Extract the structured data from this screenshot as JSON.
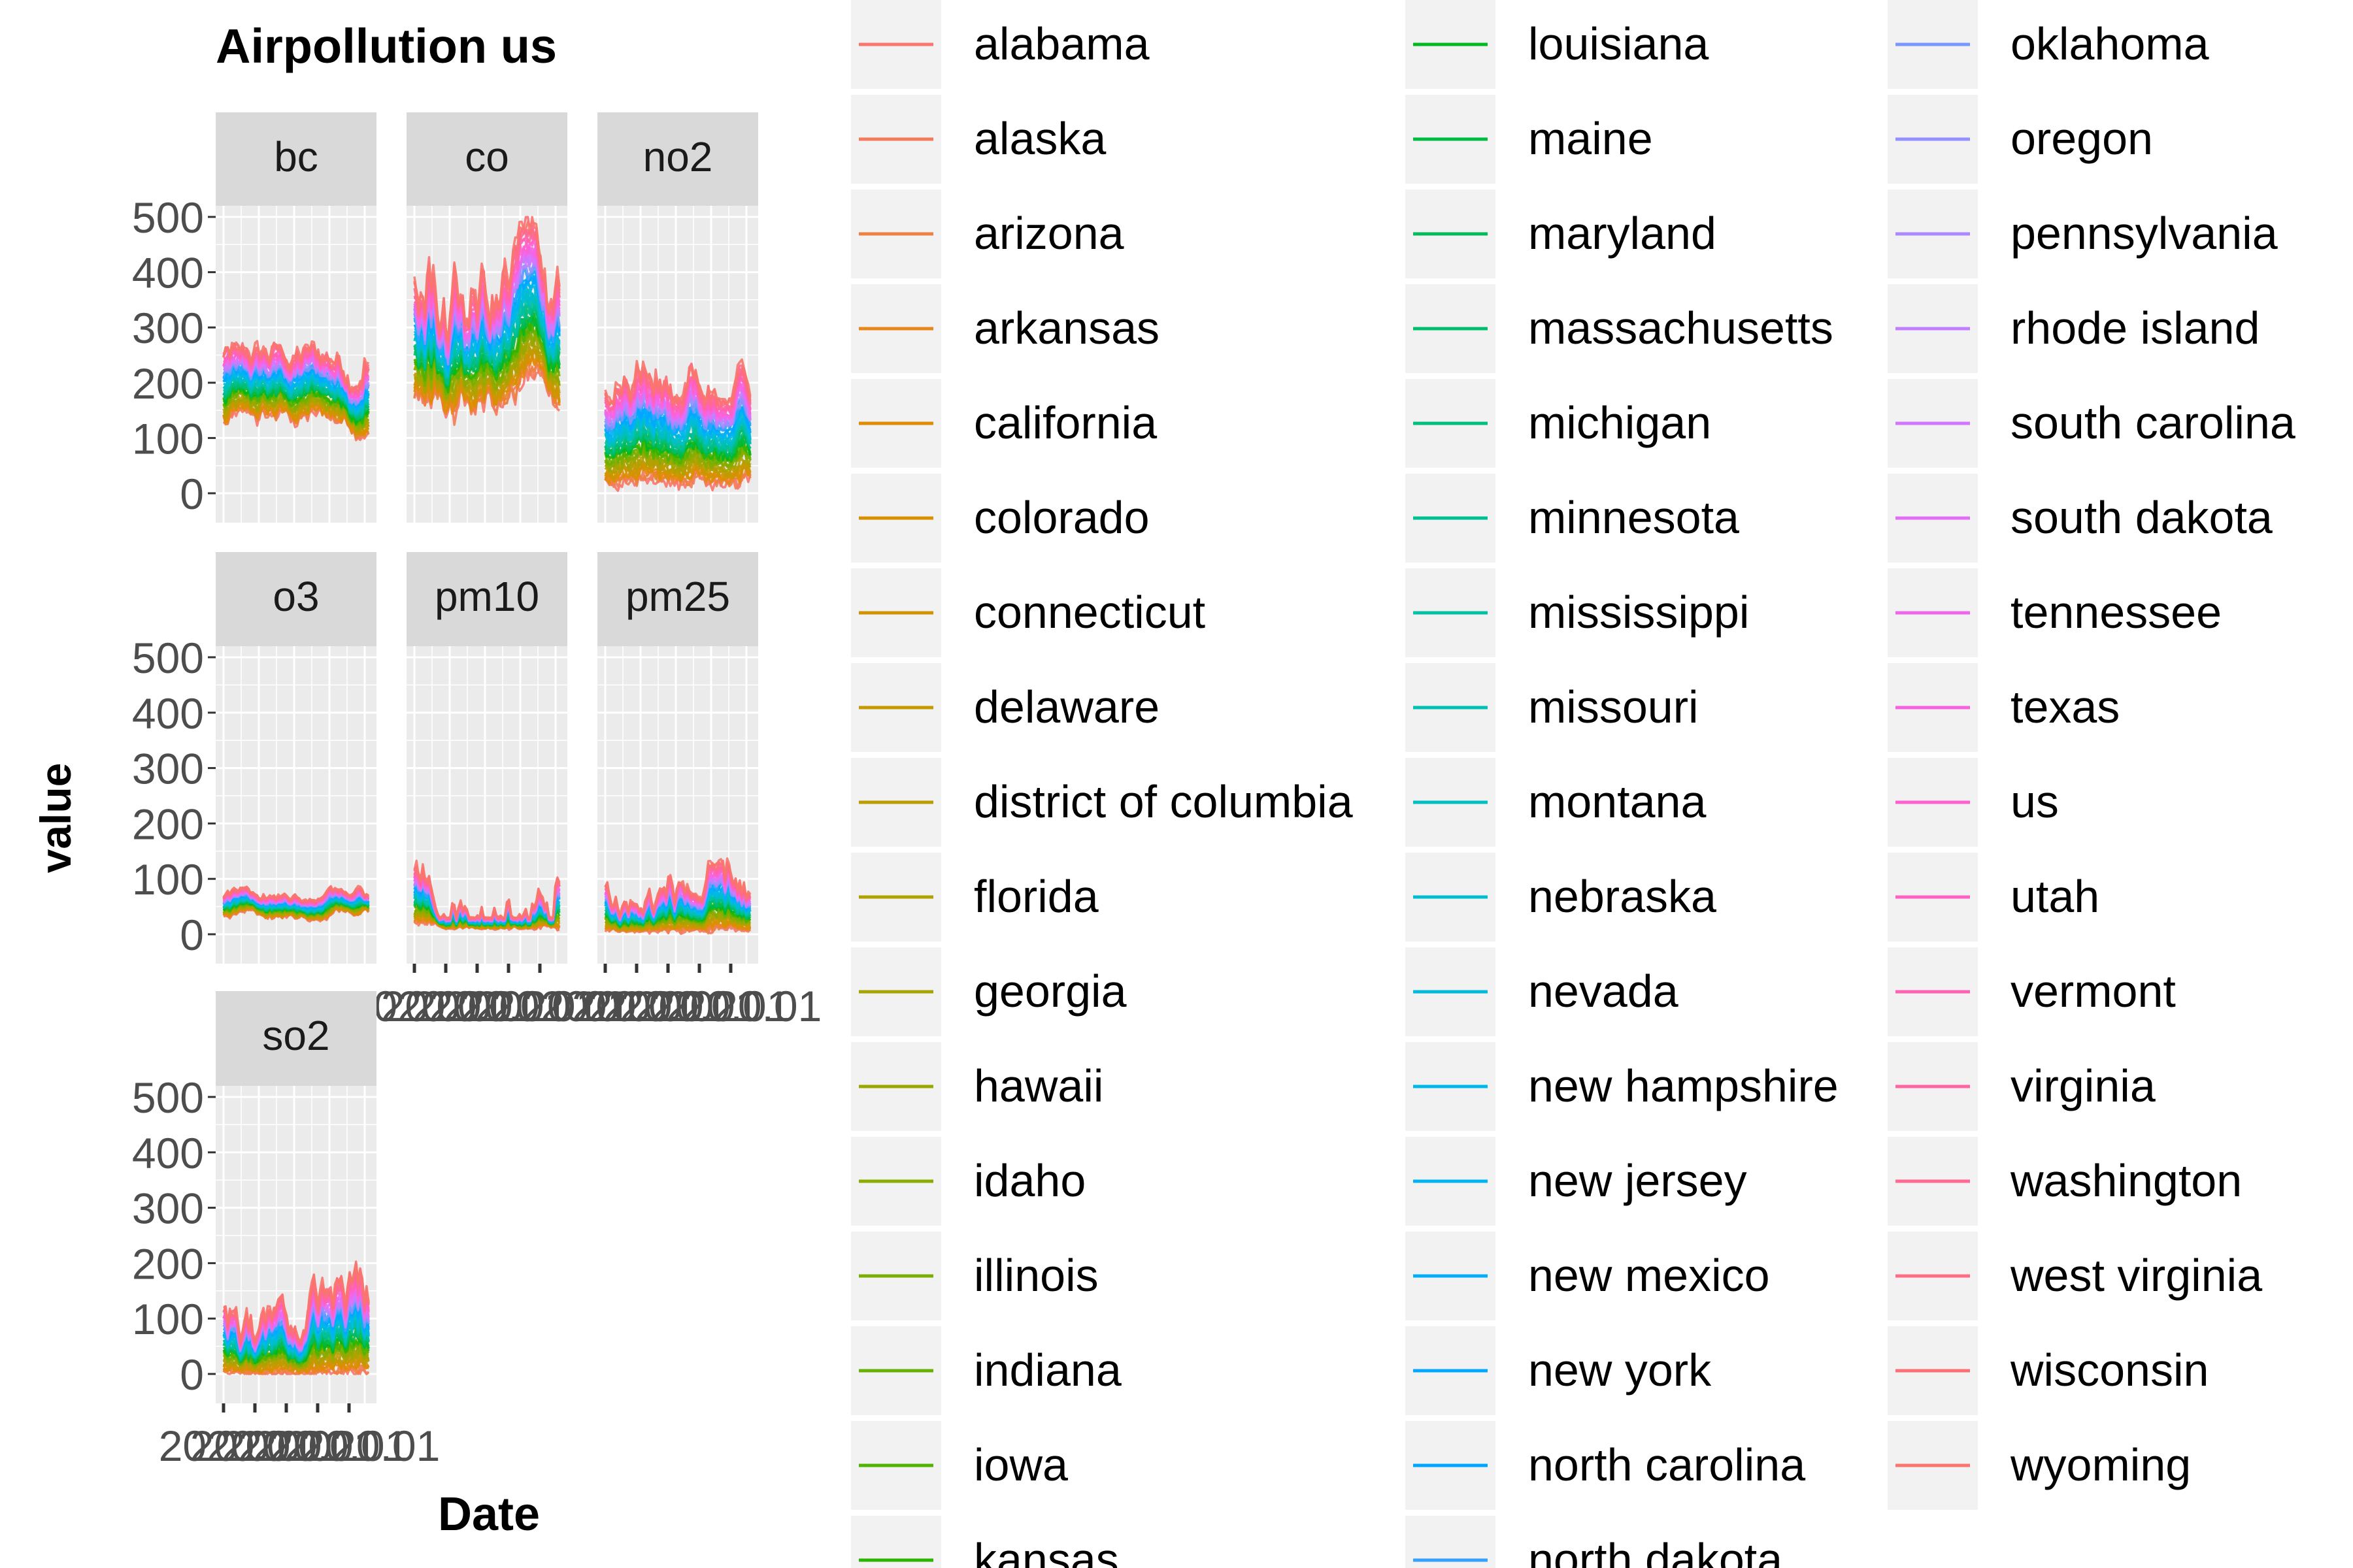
{
  "chart_data": {
    "type": "line",
    "title": "Airpollution us",
    "xlabel": "Date",
    "ylabel": "value",
    "ylim": [
      0,
      500
    ],
    "y_ticks": [
      0,
      100,
      200,
      300,
      400,
      500
    ],
    "x_tick_text": "2020.01",
    "grid": true,
    "legend_position": "right",
    "facets": [
      "bc",
      "co",
      "no2",
      "o3",
      "pm10",
      "pm25",
      "so2"
    ],
    "facet_ranges": {
      "bc": {
        "low": [
          100,
          150
        ],
        "high": [
          190,
          270
        ]
      },
      "co": {
        "low": [
          130,
          220
        ],
        "high": [
          270,
          490
        ]
      },
      "no2": {
        "low": [
          15,
          40
        ],
        "high": [
          170,
          290
        ]
      },
      "o3": {
        "low": [
          25,
          45
        ],
        "high": [
          60,
          85
        ]
      },
      "pm10": {
        "low": [
          10,
          25
        ],
        "high": [
          30,
          140
        ]
      },
      "pm25": {
        "low": [
          3,
          10
        ],
        "high": [
          12,
          130
        ]
      },
      "so2": {
        "low": [
          0,
          5
        ],
        "high": [
          60,
          195
        ]
      }
    },
    "series": [
      {
        "name": "alabama",
        "color": "#F8766D"
      },
      {
        "name": "alaska",
        "color": "#F37B59"
      },
      {
        "name": "arizona",
        "color": "#ED8141"
      },
      {
        "name": "arkansas",
        "color": "#E7861B"
      },
      {
        "name": "california",
        "color": "#DF8C00"
      },
      {
        "name": "colorado",
        "color": "#D89000"
      },
      {
        "name": "connecticut",
        "color": "#CF9400"
      },
      {
        "name": "delaware",
        "color": "#C69900"
      },
      {
        "name": "district of columbia",
        "color": "#BB9D00"
      },
      {
        "name": "florida",
        "color": "#B0A100"
      },
      {
        "name": "georgia",
        "color": "#A5A400"
      },
      {
        "name": "hawaii",
        "color": "#98A800"
      },
      {
        "name": "idaho",
        "color": "#8AAB00"
      },
      {
        "name": "illinois",
        "color": "#7AAE00"
      },
      {
        "name": "indiana",
        "color": "#68B100"
      },
      {
        "name": "iowa",
        "color": "#50B300"
      },
      {
        "name": "kansas",
        "color": "#2CB500"
      },
      {
        "name": "louisiana",
        "color": "#00B81F"
      },
      {
        "name": "maine",
        "color": "#00BA42"
      },
      {
        "name": "maryland",
        "color": "#00BB59"
      },
      {
        "name": "massachusetts",
        "color": "#00BD6D"
      },
      {
        "name": "michigan",
        "color": "#00BE80"
      },
      {
        "name": "minnesota",
        "color": "#00BF92"
      },
      {
        "name": "mississippi",
        "color": "#00C0A3"
      },
      {
        "name": "missouri",
        "color": "#00C0B3"
      },
      {
        "name": "montana",
        "color": "#00BFC2"
      },
      {
        "name": "nebraska",
        "color": "#00BDD0"
      },
      {
        "name": "nevada",
        "color": "#00BBDC"
      },
      {
        "name": "new hampshire",
        "color": "#00B8E7"
      },
      {
        "name": "new jersey",
        "color": "#00B4F0"
      },
      {
        "name": "new mexico",
        "color": "#00AFF8"
      },
      {
        "name": "new york",
        "color": "#00A9FF"
      },
      {
        "name": "north carolina",
        "color": "#00A5FF"
      },
      {
        "name": "north dakota",
        "color": "#35A2FF"
      },
      {
        "name": "oklahoma",
        "color": "#7997FF"
      },
      {
        "name": "oregon",
        "color": "#9590FF"
      },
      {
        "name": "pennsylvania",
        "color": "#AC88FF"
      },
      {
        "name": "rhode island",
        "color": "#C17FFF"
      },
      {
        "name": "south carolina",
        "color": "#D376FF"
      },
      {
        "name": "south dakota",
        "color": "#E26EF7"
      },
      {
        "name": "tennessee",
        "color": "#EE67EB"
      },
      {
        "name": "texas",
        "color": "#F763DE"
      },
      {
        "name": "us",
        "color": "#FD61D0"
      },
      {
        "name": "utah",
        "color": "#FF61C2"
      },
      {
        "name": "vermont",
        "color": "#FF62B2"
      },
      {
        "name": "virginia",
        "color": "#FF65A2"
      },
      {
        "name": "washington",
        "color": "#FF6992"
      },
      {
        "name": "west virginia",
        "color": "#FF6C83"
      },
      {
        "name": "wisconsin",
        "color": "#FC7075"
      },
      {
        "name": "wyoming",
        "color": "#F8766D"
      }
    ]
  }
}
